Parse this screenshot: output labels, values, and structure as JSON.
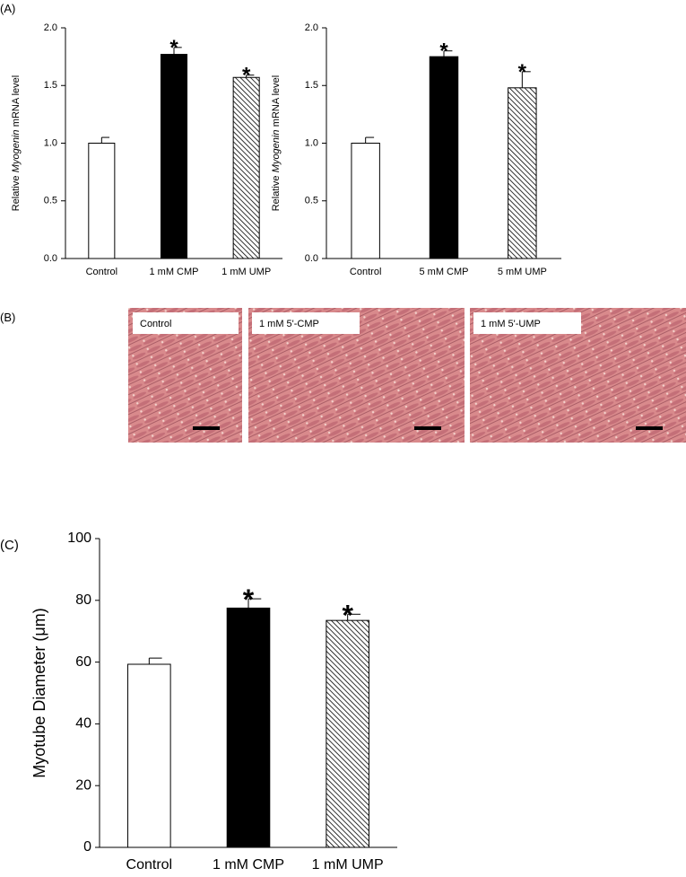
{
  "panels": [
    "(A)",
    "(B)",
    "(C)"
  ],
  "images": [
    {
      "label": "Control"
    },
    {
      "label": "1 mM  5'-CMP"
    },
    {
      "label": "1 mM  5'-UMP"
    }
  ],
  "chart_data": [
    {
      "type": "bar",
      "y_label": {
        "before": "Relative",
        "italic": "Myogenin",
        "after": "mRNA level"
      },
      "categories": [
        "Control",
        "1 mM CMP",
        "1 mM UMP"
      ],
      "values": [
        1.0,
        1.77,
        1.57
      ],
      "errors": [
        0.05,
        0.06,
        0.02
      ],
      "significance": [
        null,
        "*",
        "*"
      ],
      "colors": [
        "#ffffff",
        "#000000",
        "#ffffff"
      ],
      "hatch": [
        false,
        false,
        true
      ],
      "ylim": [
        0,
        2
      ],
      "yticks": [
        {
          "value": 0,
          "label": "0.0"
        },
        {
          "value": 0.5,
          "label": "0.5"
        },
        {
          "value": 1,
          "label": "1.0"
        },
        {
          "value": 1.5,
          "label": "1.5"
        },
        {
          "value": 2,
          "label": "2.0"
        }
      ]
    },
    {
      "type": "bar",
      "y_label": {
        "before": "Relative",
        "italic": "Myogenin",
        "after": "mRNA level"
      },
      "categories": [
        "Control",
        "5 mM CMP",
        "5 mM UMP"
      ],
      "values": [
        1.0,
        1.75,
        1.48
      ],
      "errors": [
        0.05,
        0.05,
        0.14
      ],
      "significance": [
        null,
        "*",
        "*"
      ],
      "colors": [
        "#ffffff",
        "#000000",
        "#ffffff"
      ],
      "hatch": [
        false,
        false,
        true
      ],
      "ylim": [
        0,
        2
      ],
      "yticks": [
        {
          "value": 0,
          "label": "0.0"
        },
        {
          "value": 0.5,
          "label": "0.5"
        },
        {
          "value": 1,
          "label": "1.0"
        },
        {
          "value": 1.5,
          "label": "1.5"
        },
        {
          "value": 2,
          "label": "2.0"
        }
      ]
    },
    {
      "type": "bar",
      "y_label": {
        "text": "Myotube Diameter  (μm)"
      },
      "categories": [
        "Control",
        "1 mM CMP",
        "1 mM UMP"
      ],
      "values": [
        59.3,
        77.5,
        73.5
      ],
      "errors": [
        2,
        3,
        2
      ],
      "significance": [
        null,
        "*",
        "*"
      ],
      "colors": [
        "#ffffff",
        "#000000",
        "#ffffff"
      ],
      "hatch": [
        false,
        false,
        true
      ],
      "ylim": [
        0,
        100
      ],
      "yticks": [
        0,
        20,
        40,
        60,
        80,
        100
      ]
    }
  ]
}
